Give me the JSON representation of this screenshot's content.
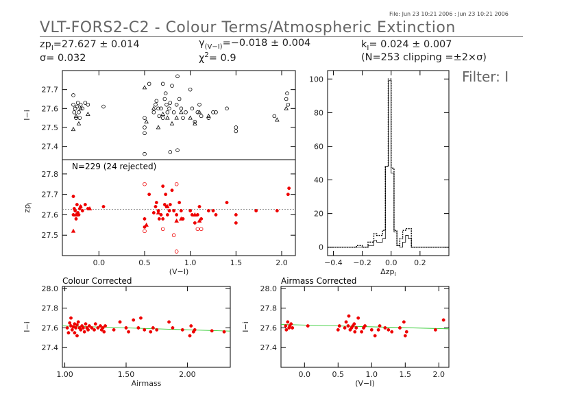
{
  "header": {
    "file_stamp": "File: Jun 23 10:21 2006 : Jun 23 10:21 2006",
    "title": "VLT-FORS2-C2 - Colour Terms/Atmospheric Extinction",
    "zp": "zp",
    "zp_sub": "I",
    "zp_value": "=27.627 ± 0.014",
    "gamma": "γ",
    "gamma_sub": "(V−I)",
    "gamma_value": "=−0.018 ± 0.004",
    "k": "k",
    "k_sub": "I",
    "k_value": "= 0.024 ± 0.007",
    "sigma": "σ= 0.032",
    "chi": "χ",
    "chi_sup": "2",
    "chi_value": "=   0.9",
    "clipping": "(N=253 clipping =±2×σ)",
    "filter_label": "Filter: I"
  },
  "chart_data": [
    {
      "id": "raw",
      "type": "scatter",
      "xlabel": "",
      "ylabel": "I−i",
      "xlim": [
        -0.4,
        2.15
      ],
      "ylim": [
        27.33,
        27.8
      ],
      "yticks": [
        27.4,
        27.5,
        27.6,
        27.7
      ],
      "ytick_labels": [
        "27.4",
        "27.5",
        "27.6",
        "27.7"
      ],
      "series": [
        {
          "marker": "circle",
          "color": "#000000",
          "x": [
            -0.28,
            -0.28,
            -0.27,
            -0.26,
            -0.25,
            -0.24,
            -0.23,
            -0.22,
            -0.21,
            -0.2,
            -0.18,
            -0.15,
            -0.12,
            0.05,
            0.5,
            0.5,
            0.5,
            0.55,
            0.6,
            0.62,
            0.63,
            0.65,
            0.66,
            0.68,
            0.7,
            0.7,
            0.72,
            0.73,
            0.74,
            0.75,
            0.77,
            0.78,
            0.8,
            0.82,
            0.85,
            0.86,
            0.88,
            0.9,
            0.92,
            0.95,
            1.0,
            1.02,
            1.05,
            1.08,
            1.1,
            1.12,
            1.2,
            1.25,
            1.28,
            1.4,
            1.5,
            1.5,
            1.92,
            2.05,
            2.06,
            2.07
          ],
          "y": [
            27.67,
            27.62,
            27.58,
            27.6,
            27.55,
            27.61,
            27.63,
            27.58,
            27.55,
            27.62,
            27.6,
            27.63,
            27.62,
            27.61,
            27.5,
            27.55,
            27.47,
            27.73,
            27.58,
            27.62,
            27.64,
            27.6,
            27.56,
            27.6,
            27.73,
            27.55,
            27.65,
            27.68,
            27.62,
            27.58,
            27.6,
            27.63,
            27.72,
            27.58,
            27.62,
            27.38,
            27.65,
            27.6,
            27.55,
            27.58,
            27.7,
            27.6,
            27.53,
            27.58,
            27.62,
            27.56,
            27.55,
            27.58,
            27.58,
            27.6,
            27.5,
            27.48,
            27.56,
            27.65,
            27.68,
            27.62
          ]
        },
        {
          "marker": "triangle",
          "color": "#000000",
          "x": [
            -0.28,
            -0.25,
            -0.22,
            -0.2,
            -0.12,
            0.5,
            0.52,
            0.6,
            0.65,
            0.7,
            0.75,
            0.8,
            0.85,
            0.9,
            1.0,
            1.05,
            1.1,
            1.2,
            1.95,
            2.05
          ],
          "y": [
            27.49,
            27.56,
            27.52,
            27.6,
            27.57,
            27.71,
            27.53,
            27.6,
            27.5,
            27.57,
            27.55,
            27.52,
            27.55,
            27.58,
            27.55,
            27.52,
            27.58,
            27.56,
            27.54,
            27.6
          ]
        },
        {
          "marker": "circle",
          "color": "#000000",
          "x": [
            0.5,
            0.78,
            0.86
          ],
          "y": [
            27.36,
            27.37,
            27.77
          ]
        }
      ]
    },
    {
      "id": "corrected",
      "type": "scatter",
      "xlabel": "(V−I)",
      "ylabel": "zp",
      "ylabel_sub": "I",
      "annotation": "N=229 (24 rejected)",
      "xlim": [
        -0.4,
        2.15
      ],
      "ylim": [
        27.4,
        27.87
      ],
      "yticks": [
        27.5,
        27.6,
        27.7,
        27.8
      ],
      "ytick_labels": [
        "27.5",
        "27.6",
        "27.7",
        "27.8"
      ],
      "xticks": [
        0.0,
        0.5,
        1.0,
        1.5,
        2.0
      ],
      "xtick_labels": [
        "0.0",
        "0.5",
        "1.0",
        "1.5",
        "2.0"
      ],
      "mean_line": 27.627,
      "series": [
        {
          "marker": "dot",
          "color": "#ee0000",
          "x": [
            -0.28,
            -0.28,
            -0.27,
            -0.26,
            -0.25,
            -0.24,
            -0.23,
            -0.22,
            -0.21,
            -0.2,
            -0.18,
            -0.15,
            -0.12,
            0.05,
            0.5,
            0.5,
            0.55,
            0.6,
            0.62,
            0.63,
            0.65,
            0.66,
            0.68,
            0.7,
            0.7,
            0.72,
            0.73,
            0.74,
            0.75,
            0.77,
            0.78,
            0.8,
            0.82,
            0.85,
            0.88,
            0.9,
            0.92,
            1.0,
            1.02,
            1.05,
            1.08,
            1.1,
            1.12,
            1.2,
            1.25,
            1.28,
            1.4,
            1.5,
            1.5,
            1.72,
            1.95,
            2.07,
            2.08
          ],
          "y": [
            27.69,
            27.6,
            27.63,
            27.62,
            27.58,
            27.65,
            27.61,
            27.6,
            27.63,
            27.64,
            27.62,
            27.65,
            27.63,
            27.64,
            27.54,
            27.58,
            27.7,
            27.61,
            27.64,
            27.66,
            27.62,
            27.58,
            27.6,
            27.74,
            27.58,
            27.65,
            27.7,
            27.64,
            27.6,
            27.62,
            27.65,
            27.72,
            27.62,
            27.6,
            27.66,
            27.62,
            27.58,
            27.62,
            27.6,
            27.56,
            27.6,
            27.64,
            27.58,
            27.62,
            27.62,
            27.6,
            27.66,
            27.56,
            27.6,
            27.62,
            27.62,
            27.7,
            27.73
          ]
        },
        {
          "marker": "triangle",
          "color": "#ee0000",
          "x": [
            -0.28,
            -0.25,
            -0.2,
            -0.1,
            0.52,
            0.65,
            0.75,
            0.85,
            0.9,
            1.05,
            1.1
          ],
          "y": [
            27.52,
            27.6,
            27.64,
            27.63,
            27.55,
            27.61,
            27.64,
            27.57,
            27.58,
            27.6,
            27.57
          ]
        },
        {
          "marker": "circle",
          "color": "#ee0000",
          "x": [
            0.5,
            0.5,
            0.7,
            0.82,
            0.85,
            0.85,
            1.08,
            1.12
          ],
          "y": [
            27.52,
            27.75,
            27.53,
            27.5,
            27.42,
            27.75,
            27.53,
            27.53
          ]
        }
      ]
    },
    {
      "id": "histogram",
      "type": "bar",
      "xlabel": "Δzp",
      "xlabel_sub": "I",
      "xlim": [
        -0.44,
        0.4
      ],
      "ylim": [
        -5,
        105
      ],
      "yticks": [
        0,
        20,
        40,
        60,
        80,
        100
      ],
      "ytick_labels": [
        "0",
        "20",
        "40",
        "60",
        "80",
        "100"
      ],
      "xticks": [
        -0.4,
        -0.2,
        0.0,
        0.2
      ],
      "xtick_labels": [
        "−0.4",
        "−0.2",
        "0.0",
        "0.2"
      ],
      "bin_edges": [
        -0.44,
        -0.24,
        -0.2,
        -0.16,
        -0.12,
        -0.1,
        -0.08,
        -0.06,
        -0.04,
        -0.02,
        0.0,
        0.02,
        0.04,
        0.06,
        0.08,
        0.1,
        0.12,
        0.14,
        0.16,
        0.2,
        0.4
      ],
      "series": [
        {
          "name": "",
          "style": "solid",
          "counts": [
            0,
            0,
            0,
            1,
            4,
            3,
            3,
            5,
            48,
            99,
            44,
            9,
            1,
            0,
            3,
            7,
            5,
            0,
            0,
            0
          ]
        },
        {
          "name": "",
          "style": "dotted",
          "counts": [
            0,
            1,
            0,
            3,
            8,
            7,
            7,
            10,
            48,
            100,
            47,
            10,
            1,
            5,
            10,
            11,
            11,
            0,
            0,
            0
          ]
        }
      ]
    },
    {
      "id": "airmass",
      "type": "scatter",
      "title": "Colour Corrected",
      "xlabel": "Airmass",
      "ylabel": "I−i",
      "xlim": [
        0.98,
        2.35
      ],
      "ylim": [
        27.2,
        28.02
      ],
      "yticks": [
        27.4,
        27.6,
        27.8,
        28.0
      ],
      "ytick_labels": [
        "27.4",
        "27.6",
        "27.8",
        "28.0"
      ],
      "xticks": [
        1.0,
        1.5,
        2.0
      ],
      "xtick_labels": [
        "1.00",
        "1.50",
        "2.00"
      ],
      "fit_line": {
        "x": [
          0.98,
          2.35
        ],
        "y": [
          27.62,
          27.567
        ]
      },
      "series": [
        {
          "marker": "dot",
          "color": "#ee0000",
          "x": [
            1.02,
            1.03,
            1.04,
            1.05,
            1.05,
            1.06,
            1.07,
            1.08,
            1.08,
            1.09,
            1.1,
            1.1,
            1.11,
            1.12,
            1.13,
            1.14,
            1.15,
            1.16,
            1.17,
            1.18,
            1.19,
            1.2,
            1.22,
            1.24,
            1.25,
            1.27,
            1.29,
            1.3,
            1.31,
            1.32,
            1.33,
            1.4,
            1.45,
            1.5,
            1.52,
            1.56,
            1.6,
            1.62,
            1.65,
            1.7,
            1.72,
            1.75,
            1.85,
            1.88,
            1.96,
            2.02,
            2.03,
            2.05,
            2.06,
            2.2,
            2.3
          ],
          "y": [
            27.6,
            27.55,
            27.65,
            27.62,
            27.7,
            27.58,
            27.61,
            27.55,
            27.64,
            27.6,
            27.63,
            27.52,
            27.66,
            27.6,
            27.58,
            27.62,
            27.6,
            27.56,
            27.64,
            27.6,
            27.58,
            27.62,
            27.6,
            27.58,
            27.64,
            27.6,
            27.62,
            27.58,
            27.6,
            27.56,
            27.62,
            27.58,
            27.66,
            27.6,
            27.56,
            27.68,
            27.6,
            27.7,
            27.58,
            27.56,
            27.6,
            27.58,
            27.66,
            27.6,
            27.58,
            27.52,
            27.62,
            27.56,
            27.58,
            27.57,
            27.56
          ]
        }
      ]
    },
    {
      "id": "colour",
      "type": "scatter",
      "title": "Airmass Corrected",
      "xlabel": "(V−I)",
      "ylabel": "I−i",
      "xlim": [
        -0.35,
        2.15
      ],
      "ylim": [
        27.2,
        28.02
      ],
      "yticks": [
        27.4,
        27.6,
        27.8,
        28.0
      ],
      "ytick_labels": [
        "27.4",
        "27.6",
        "27.8",
        "28.0"
      ],
      "xticks": [
        0.0,
        0.5,
        1.0,
        1.5,
        2.0
      ],
      "xtick_labels": [
        "0.0",
        "0.5",
        "1.0",
        "1.5",
        "2.0"
      ],
      "fit_line": {
        "x": [
          -0.35,
          2.15
        ],
        "y": [
          27.635,
          27.59
        ]
      },
      "series": [
        {
          "marker": "dot",
          "color": "#ee0000",
          "x": [
            -0.28,
            -0.27,
            -0.25,
            -0.23,
            -0.22,
            -0.2,
            -0.18,
            0.05,
            0.5,
            0.52,
            0.6,
            0.62,
            0.65,
            0.66,
            0.68,
            0.7,
            0.72,
            0.74,
            0.75,
            0.77,
            0.8,
            0.85,
            0.88,
            0.9,
            1.0,
            1.05,
            1.1,
            1.12,
            1.2,
            1.25,
            1.3,
            1.42,
            1.48,
            1.5,
            1.52,
            1.95,
            2.07
          ],
          "y": [
            27.62,
            27.58,
            27.66,
            27.6,
            27.62,
            27.64,
            27.6,
            27.62,
            27.58,
            27.62,
            27.6,
            27.66,
            27.62,
            27.72,
            27.58,
            27.6,
            27.62,
            27.64,
            27.56,
            27.6,
            27.7,
            27.56,
            27.6,
            27.62,
            27.58,
            27.52,
            27.58,
            27.62,
            27.6,
            27.58,
            27.56,
            27.6,
            27.66,
            27.52,
            27.56,
            27.58,
            27.68
          ]
        }
      ]
    }
  ]
}
